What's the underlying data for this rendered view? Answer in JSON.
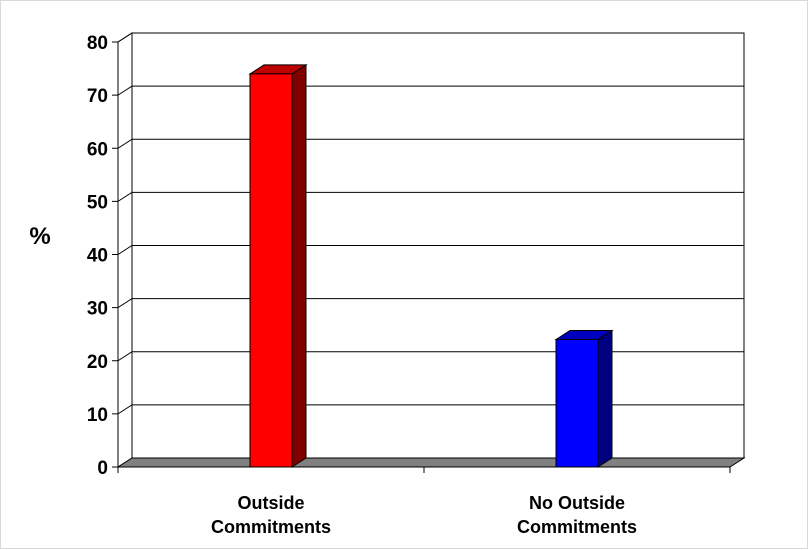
{
  "chart_data": {
    "type": "bar",
    "title": "",
    "ylabel": "%",
    "xlabel": "",
    "ylim": [
      0,
      80
    ],
    "yticks": [
      "0",
      "10",
      "20",
      "30",
      "40",
      "50",
      "60",
      "70",
      "80"
    ],
    "categories": [
      [
        "Outside",
        "Commitments"
      ],
      [
        "No Outside",
        "Commitments"
      ]
    ],
    "values": [
      74,
      24
    ],
    "colors": [
      "#ff0000",
      "#0000ff"
    ],
    "grid": true,
    "legend": "none"
  }
}
